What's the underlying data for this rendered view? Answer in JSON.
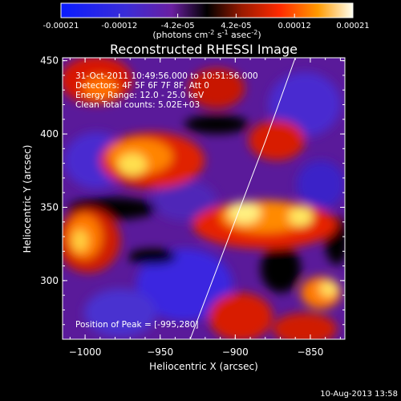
{
  "colorbar": {
    "ticks": [
      "-0.00021",
      "-0.00012",
      "-4.2e-05",
      "4.2e-05",
      "0.00012",
      "0.00021"
    ],
    "unit_label": "(photons cm",
    "unit_exp1": "-2",
    "unit_mid": " s",
    "unit_exp2": "-1",
    "unit_mid2": " asec",
    "unit_exp3": "-2",
    "unit_end": ")"
  },
  "plot": {
    "title": "Reconstructed RHESSI Image",
    "xlabel": "Heliocentric X (arcsec)",
    "ylabel": "Heliocentric Y (arcsec)",
    "xticks": [
      {
        "value": -1000,
        "label": "−1000"
      },
      {
        "value": -950,
        "label": "−950"
      },
      {
        "value": -900,
        "label": "−900"
      },
      {
        "value": -850,
        "label": "−850"
      }
    ],
    "yticks": [
      {
        "value": 300,
        "label": "300"
      },
      {
        "value": 350,
        "label": "350"
      },
      {
        "value": 400,
        "label": "400"
      },
      {
        "value": 450,
        "label": "450"
      }
    ],
    "xlim": [
      -1015,
      -827
    ],
    "ylim": [
      260,
      452
    ]
  },
  "annotations": {
    "time": "31-Oct-2011 10:49:56.000 to 10:51:56.000",
    "detectors": "Detectors: 4F 5F 6F 7F 8F, Att 0",
    "energy": "Energy Range: 12.0 - 25.0 keV",
    "clean": "Clean    Total counts: 5.02E+03",
    "peak": "Position of Peak = [-995,280]"
  },
  "footer_date": "10-Aug-2013 13:58",
  "limb": [
    [
      -930,
      260
    ],
    [
      -880,
      395
    ],
    [
      -860,
      452
    ]
  ]
}
